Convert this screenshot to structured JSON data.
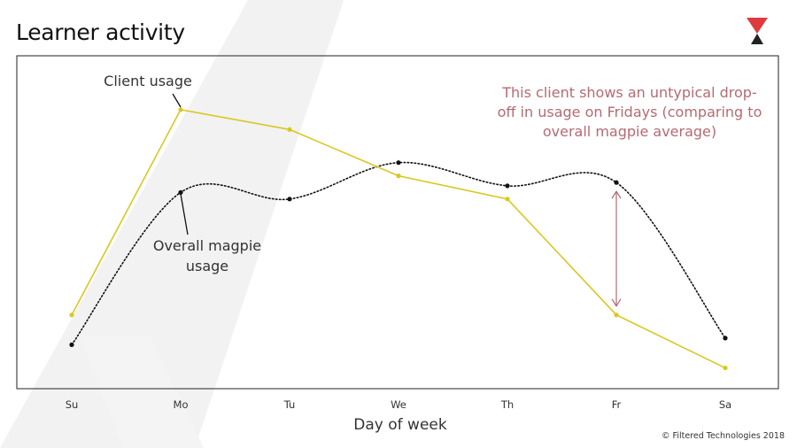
{
  "slide": {
    "title": "Learner activity",
    "copyright": "© Filtered Technologies 2018",
    "logo_icon": "hourglass-triangle-logo-icon"
  },
  "colors": {
    "client": "#d8c820",
    "overall": "#111111",
    "annotation": "#b56a72",
    "frame": "#222222",
    "logo_top": "#e03a3e",
    "logo_bottom": "#222222"
  },
  "chart_data": {
    "type": "line",
    "categories": [
      "Su",
      "Mo",
      "Tu",
      "We",
      "Th",
      "Fr",
      "Sa"
    ],
    "xlabel": "Day of week",
    "ylabel": "",
    "ylim": [
      0,
      100
    ],
    "grid": false,
    "legend": "none",
    "series": [
      {
        "name": "Client usage",
        "color": "#d8c820",
        "smooth": false,
        "values": [
          22,
          84,
          78,
          64,
          57,
          22,
          6
        ]
      },
      {
        "name": "Overall magpie usage",
        "color": "#111111",
        "smooth": true,
        "dotted": true,
        "values": [
          13,
          59,
          57,
          68,
          61,
          62,
          15
        ]
      }
    ],
    "annotations": {
      "client_label": "Client usage",
      "overall_label": "Overall magpie usage",
      "note": "This client shows an untypical drop-off in usage on Fridays (comparing to overall magpie average)"
    }
  }
}
